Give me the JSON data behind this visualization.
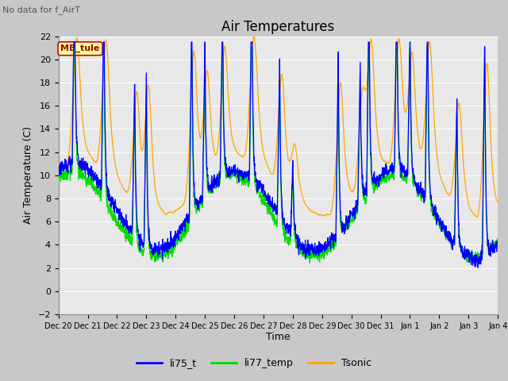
{
  "title": "Air Temperatures",
  "xlabel": "Time",
  "ylabel": "Air Temperature (C)",
  "top_left_text": "No data for f_AirT",
  "annotation_box": "MB_tule",
  "ylim": [
    -2,
    22
  ],
  "yticks": [
    -2,
    0,
    2,
    4,
    6,
    8,
    10,
    12,
    14,
    16,
    18,
    20,
    22
  ],
  "xticklabels": [
    "Dec 20",
    "Dec 21",
    "Dec 22",
    "Dec 23",
    "Dec 24",
    "Dec 25",
    "Dec 26",
    "Dec 27",
    "Dec 28",
    "Dec 29",
    "Dec 30",
    "Dec 31",
    "Jan 1",
    "Jan 2",
    "Jan 3",
    "Jan 4"
  ],
  "series_names": [
    "li75_t",
    "li77_temp",
    "Tsonic"
  ],
  "series_colors": [
    "#0000FF",
    "#00DD00",
    "#FFA500"
  ],
  "fig_bg_color": "#C8C8C8",
  "plot_bg_color": "#E8E8E8",
  "grid_color": "#FFFFFF",
  "title_fontsize": 12,
  "label_fontsize": 9,
  "tick_fontsize": 8
}
